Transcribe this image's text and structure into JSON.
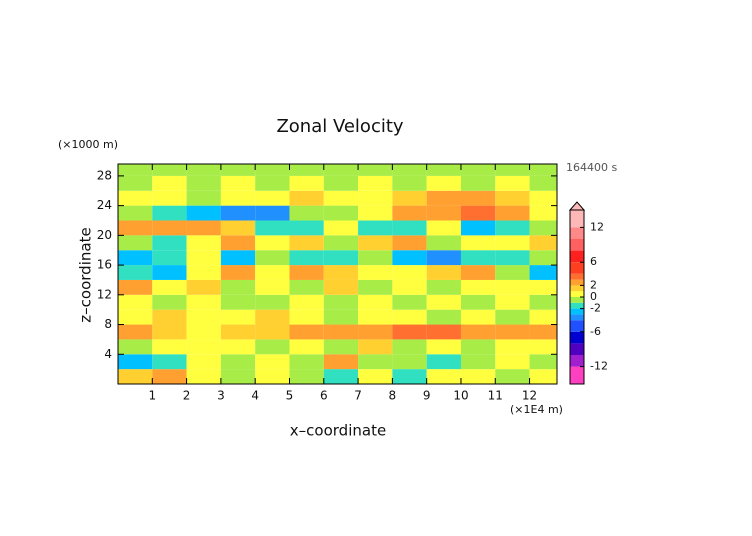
{
  "chart_data": {
    "type": "contour",
    "title": "Zonal Velocity",
    "xlabel": "x–coordinate",
    "ylabel": "z–coordinate",
    "xunit": "(×1E4 m)",
    "yunit": "(×1000 m)",
    "time_label": "164400 s",
    "xlim": [
      0,
      12.8
    ],
    "ylim": [
      0,
      29.6
    ],
    "xticks": [
      1,
      2,
      3,
      4,
      5,
      6,
      7,
      8,
      9,
      10,
      11,
      12
    ],
    "yticks": [
      4,
      8,
      12,
      16,
      20,
      24,
      28
    ],
    "x": [
      0.5,
      1.5,
      2.5,
      3.5,
      4.5,
      5.5,
      6.5,
      7.5,
      8.5,
      9.5,
      10.5,
      11.5,
      12.5
    ],
    "y": [
      1,
      3,
      5,
      7,
      9,
      11,
      13,
      15,
      17,
      19,
      21,
      23,
      25,
      27,
      29
    ],
    "z": [
      [
        1.5,
        2.5,
        0.5,
        -0.5,
        0.5,
        -0.5,
        -1.5,
        0.5,
        -1.5,
        0.5,
        0.5,
        -0.5,
        0.5
      ],
      [
        -2.5,
        -1.5,
        0.5,
        -0.5,
        0.5,
        -0.5,
        2.5,
        -0.5,
        -0.5,
        -1.5,
        -0.5,
        0.5,
        -0.5
      ],
      [
        -0.5,
        0.5,
        0.5,
        0.5,
        -0.5,
        0.5,
        -0.5,
        1.5,
        -0.5,
        0.5,
        -0.5,
        0.5,
        0.5
      ],
      [
        2.5,
        1.5,
        0.5,
        1.5,
        1.5,
        2.5,
        2.5,
        2.5,
        3.5,
        3.5,
        2.5,
        2.5,
        2.5
      ],
      [
        0.5,
        1.5,
        0.5,
        0.5,
        1.5,
        0.5,
        -0.5,
        0.5,
        0.5,
        -0.5,
        0.5,
        -0.5,
        0.5
      ],
      [
        0.5,
        -0.5,
        0.5,
        -0.5,
        -0.5,
        0.5,
        -0.5,
        0.5,
        -0.5,
        0.5,
        -0.5,
        0.5,
        -0.5
      ],
      [
        2.5,
        0.5,
        1.5,
        -0.5,
        0.5,
        -0.5,
        1.5,
        -0.5,
        0.5,
        -0.5,
        0.5,
        0.5,
        0.5
      ],
      [
        -1.5,
        -2.5,
        0.5,
        2.5,
        0.5,
        2.5,
        1.5,
        0.5,
        0.5,
        1.5,
        2.5,
        -0.5,
        -2.5
      ],
      [
        -2.5,
        -1.5,
        0.5,
        -2.5,
        -0.5,
        -1.5,
        -1.5,
        -0.5,
        -2.5,
        -3.5,
        -1.5,
        -1.5,
        -0.5
      ],
      [
        -0.5,
        -1.5,
        0.5,
        2.5,
        0.5,
        1.5,
        -0.5,
        1.5,
        2.5,
        -0.5,
        0.5,
        0.5,
        1.5
      ],
      [
        2.5,
        2.5,
        2.5,
        1.5,
        -1.5,
        -1.5,
        0.5,
        -1.5,
        -1.5,
        0.5,
        -2.5,
        -1.5,
        -0.5
      ],
      [
        -0.5,
        -1.5,
        -2.5,
        -3.5,
        -3.5,
        -1,
        -0.5,
        0.5,
        2.5,
        2.5,
        3.5,
        2.5,
        0.5
      ],
      [
        0.5,
        0.5,
        -0.5,
        0,
        0.5,
        1.5,
        0.5,
        0,
        1.5,
        2.5,
        2.5,
        1.5,
        0.5
      ],
      [
        -0.5,
        0.5,
        -0.5,
        0.5,
        -0.5,
        0.5,
        -0.5,
        0.5,
        -0.5,
        0.5,
        -0.5,
        0.5,
        -0.5
      ],
      [
        -0.5,
        -0.5,
        -0.5,
        -0.5,
        -0.5,
        -0.5,
        -0.5,
        -0.5,
        -0.5,
        -0.5,
        -0.5,
        -0.5,
        -0.5
      ]
    ],
    "colorbar": {
      "lim": [
        -15,
        15
      ],
      "ticks": [
        -12,
        -6,
        -2,
        0,
        2,
        6,
        12
      ],
      "levels": [
        -15,
        -12,
        -10,
        -8,
        -6,
        -4,
        -3,
        -2,
        -1,
        0,
        1,
        2,
        3,
        4,
        6,
        8,
        10,
        12,
        15
      ],
      "colors": [
        "#ff40c0",
        "#a020d0",
        "#5000c0",
        "#0000d0",
        "#2050ff",
        "#2090ff",
        "#00c0ff",
        "#30e0c0",
        "#a8ec48",
        "#ffff40",
        "#ffd030",
        "#ffa030",
        "#ff7030",
        "#ff4020",
        "#ff2020",
        "#ff6060",
        "#ff8888",
        "#ffb8b8"
      ]
    }
  }
}
